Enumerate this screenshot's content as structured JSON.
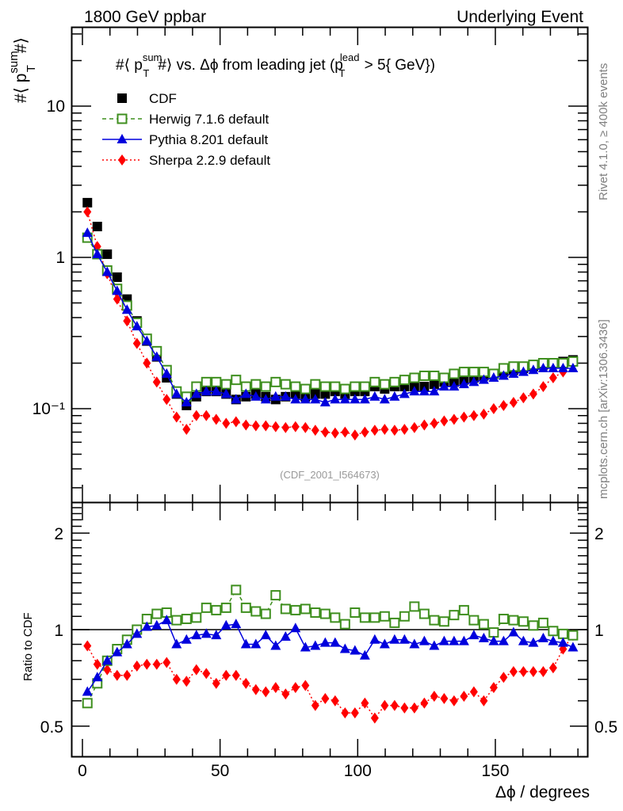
{
  "header": {
    "left_label": "1800 GeV ppbar",
    "right_label": "Underlying Event"
  },
  "side_labels": {
    "rivet": "Rivet 4.1.0, ≥ 400k events",
    "mcplots": "mcplots.cern.ch [arXiv:1306.3436]"
  },
  "watermark": "(CDF_2001_I564673)",
  "chart_data": [
    {
      "type": "scatter",
      "panel": "main",
      "title": "#⟨ p_T^sum#⟩ vs. Δϕ from leading jet  (p_T^lead > 5{ GeV})",
      "title_parts": {
        "pre": "#⟨ p",
        "sup": "sum",
        "sub": "T",
        "mid": "#⟩ vs. Δϕ from leading jet  (p",
        "sup2": "lead",
        "sub2": "T",
        "post": " > 5{ GeV})"
      },
      "ylabel": "#⟨ p_T^sum#⟩",
      "ylabel_parts": {
        "pre": "#⟨ p",
        "sup": "sum",
        "sub": "T",
        "post": "#⟩"
      },
      "yscale": "log",
      "ylim": [
        0.026,
        32
      ],
      "xlim": [
        -4,
        184
      ],
      "ytick_labels": [
        {
          "value": 10,
          "label": "10"
        },
        {
          "value": 1,
          "label": "1"
        },
        {
          "value": 0.1,
          "label": "10⁻¹"
        }
      ],
      "legend_position": "top-left",
      "legend": [
        {
          "name": "CDF",
          "color": "#000000",
          "marker": "square-filled",
          "line": "none"
        },
        {
          "name": "Herwig 7.1.6 default",
          "color": "#3f8f1f",
          "marker": "square-open",
          "line": "dashed"
        },
        {
          "name": "Pythia 8.201 default",
          "color": "#0000dd",
          "marker": "triangle",
          "line": "solid"
        },
        {
          "name": "Sherpa 2.2.9 default",
          "color": "#ff0000",
          "marker": "diamond",
          "line": "dotted"
        }
      ],
      "x": [
        1.8,
        5.4,
        9,
        12.6,
        16.2,
        19.8,
        23.4,
        27,
        30.6,
        34.2,
        37.8,
        41.4,
        45,
        48.6,
        52.2,
        55.8,
        59.4,
        63,
        66.6,
        70.2,
        73.8,
        77.4,
        81,
        84.6,
        88.2,
        91.8,
        95.4,
        99,
        102.6,
        106.2,
        109.8,
        113.4,
        117,
        120.6,
        124.2,
        127.8,
        131.4,
        135,
        138.6,
        142.2,
        145.8,
        149.4,
        153,
        156.6,
        160.2,
        163.8,
        167.4,
        171,
        174.6,
        178.2
      ],
      "series": [
        {
          "name": "CDF",
          "values": [
            2.3,
            1.6,
            1.05,
            0.74,
            0.53,
            0.38,
            0.28,
            0.22,
            0.16,
            0.125,
            0.105,
            0.12,
            0.13,
            0.13,
            0.125,
            0.115,
            0.12,
            0.125,
            0.12,
            0.115,
            0.12,
            0.125,
            0.12,
            0.125,
            0.125,
            0.13,
            0.125,
            0.13,
            0.13,
            0.14,
            0.135,
            0.14,
            0.14,
            0.14,
            0.14,
            0.145,
            0.15,
            0.15,
            0.155,
            0.16,
            0.165,
            0.17,
            0.175,
            0.18,
            0.185,
            0.19,
            0.195,
            0.2,
            0.205,
            0.21
          ]
        },
        {
          "name": "Herwig 7.1.6 default",
          "values": [
            1.35,
            1.05,
            0.82,
            0.62,
            0.48,
            0.37,
            0.29,
            0.24,
            0.18,
            0.13,
            0.12,
            0.14,
            0.15,
            0.15,
            0.145,
            0.155,
            0.14,
            0.145,
            0.14,
            0.15,
            0.145,
            0.14,
            0.135,
            0.145,
            0.14,
            0.14,
            0.135,
            0.14,
            0.14,
            0.15,
            0.145,
            0.15,
            0.155,
            0.16,
            0.165,
            0.165,
            0.16,
            0.17,
            0.175,
            0.175,
            0.175,
            0.17,
            0.185,
            0.19,
            0.19,
            0.195,
            0.2,
            0.2,
            0.2,
            0.205
          ]
        },
        {
          "name": "Pythia 8.201 default",
          "values": [
            1.45,
            1.05,
            0.8,
            0.6,
            0.45,
            0.35,
            0.28,
            0.22,
            0.17,
            0.125,
            0.11,
            0.125,
            0.13,
            0.13,
            0.125,
            0.115,
            0.125,
            0.12,
            0.115,
            0.12,
            0.12,
            0.115,
            0.115,
            0.115,
            0.11,
            0.115,
            0.115,
            0.115,
            0.115,
            0.12,
            0.115,
            0.12,
            0.125,
            0.13,
            0.13,
            0.13,
            0.14,
            0.14,
            0.145,
            0.15,
            0.155,
            0.16,
            0.165,
            0.17,
            0.175,
            0.18,
            0.185,
            0.185,
            0.185,
            0.185
          ]
        },
        {
          "name": "Sherpa 2.2.9 default",
          "values": [
            2.0,
            1.18,
            0.78,
            0.53,
            0.38,
            0.27,
            0.2,
            0.15,
            0.115,
            0.088,
            0.073,
            0.09,
            0.09,
            0.085,
            0.08,
            0.082,
            0.078,
            0.077,
            0.077,
            0.076,
            0.075,
            0.076,
            0.075,
            0.072,
            0.07,
            0.069,
            0.07,
            0.067,
            0.07,
            0.072,
            0.073,
            0.072,
            0.073,
            0.075,
            0.078,
            0.08,
            0.083,
            0.085,
            0.088,
            0.09,
            0.092,
            0.1,
            0.105,
            0.11,
            0.118,
            0.125,
            0.14,
            0.16,
            0.175,
            0.2
          ]
        }
      ]
    },
    {
      "type": "scatter",
      "panel": "ratio",
      "ylabel": "Ratio to CDF",
      "xlabel": "Δϕ / degrees",
      "yscale": "log",
      "ylim": [
        0.4,
        2.5
      ],
      "xlim": [
        -4,
        184
      ],
      "reference_line": 1,
      "ytick_labels": [
        {
          "value": 2,
          "label": "2"
        },
        {
          "value": 1,
          "label": "1"
        },
        {
          "value": 0.5,
          "label": "0.5"
        }
      ],
      "xtick_labels": [
        {
          "value": 0,
          "label": "0"
        },
        {
          "value": 50,
          "label": "50"
        },
        {
          "value": 100,
          "label": "100"
        },
        {
          "value": 150,
          "label": "150"
        }
      ],
      "x": [
        1.8,
        5.4,
        9,
        12.6,
        16.2,
        19.8,
        23.4,
        27,
        30.6,
        34.2,
        37.8,
        41.4,
        45,
        48.6,
        52.2,
        55.8,
        59.4,
        63,
        66.6,
        70.2,
        73.8,
        77.4,
        81,
        84.6,
        88.2,
        91.8,
        95.4,
        99,
        102.6,
        106.2,
        109.8,
        113.4,
        117,
        120.6,
        124.2,
        127.8,
        131.4,
        135,
        138.6,
        142.2,
        145.8,
        149.4,
        153,
        156.6,
        160.2,
        163.8,
        167.4,
        171,
        174.6,
        178.2
      ],
      "series": [
        {
          "name": "Herwig 7.1.6 default",
          "values": [
            0.59,
            0.68,
            0.8,
            0.87,
            0.93,
            1.0,
            1.08,
            1.12,
            1.13,
            1.07,
            1.08,
            1.09,
            1.17,
            1.15,
            1.17,
            1.33,
            1.17,
            1.14,
            1.12,
            1.28,
            1.16,
            1.15,
            1.16,
            1.13,
            1.12,
            1.09,
            1.04,
            1.13,
            1.09,
            1.09,
            1.1,
            1.05,
            1.1,
            1.18,
            1.12,
            1.07,
            1.06,
            1.11,
            1.15,
            1.07,
            1.04,
            0.98,
            1.08,
            1.07,
            1.06,
            1.03,
            1.05,
            0.99,
            0.97,
            0.96
          ]
        },
        {
          "name": "Pythia 8.201 default",
          "values": [
            0.64,
            0.71,
            0.8,
            0.85,
            0.9,
            0.97,
            1.02,
            1.03,
            1.07,
            0.9,
            0.93,
            0.96,
            0.97,
            0.96,
            1.03,
            1.04,
            0.9,
            0.9,
            0.96,
            0.89,
            0.95,
            1.01,
            0.88,
            0.89,
            0.91,
            0.91,
            0.87,
            0.86,
            0.83,
            0.93,
            0.9,
            0.93,
            0.93,
            0.9,
            0.92,
            0.89,
            0.92,
            0.92,
            0.92,
            0.96,
            0.94,
            0.92,
            0.92,
            0.98,
            0.92,
            0.91,
            0.94,
            0.92,
            0.91,
            0.88
          ]
        },
        {
          "name": "Sherpa 2.2.9 default",
          "values": [
            0.89,
            0.78,
            0.75,
            0.72,
            0.72,
            0.77,
            0.78,
            0.78,
            0.79,
            0.7,
            0.69,
            0.75,
            0.73,
            0.68,
            0.72,
            0.72,
            0.68,
            0.65,
            0.64,
            0.66,
            0.63,
            0.66,
            0.67,
            0.58,
            0.61,
            0.6,
            0.55,
            0.55,
            0.59,
            0.53,
            0.58,
            0.58,
            0.57,
            0.57,
            0.59,
            0.62,
            0.61,
            0.6,
            0.62,
            0.64,
            0.6,
            0.66,
            0.71,
            0.74,
            0.74,
            0.74,
            0.74,
            0.76,
            0.87,
            0.96
          ]
        }
      ]
    }
  ]
}
